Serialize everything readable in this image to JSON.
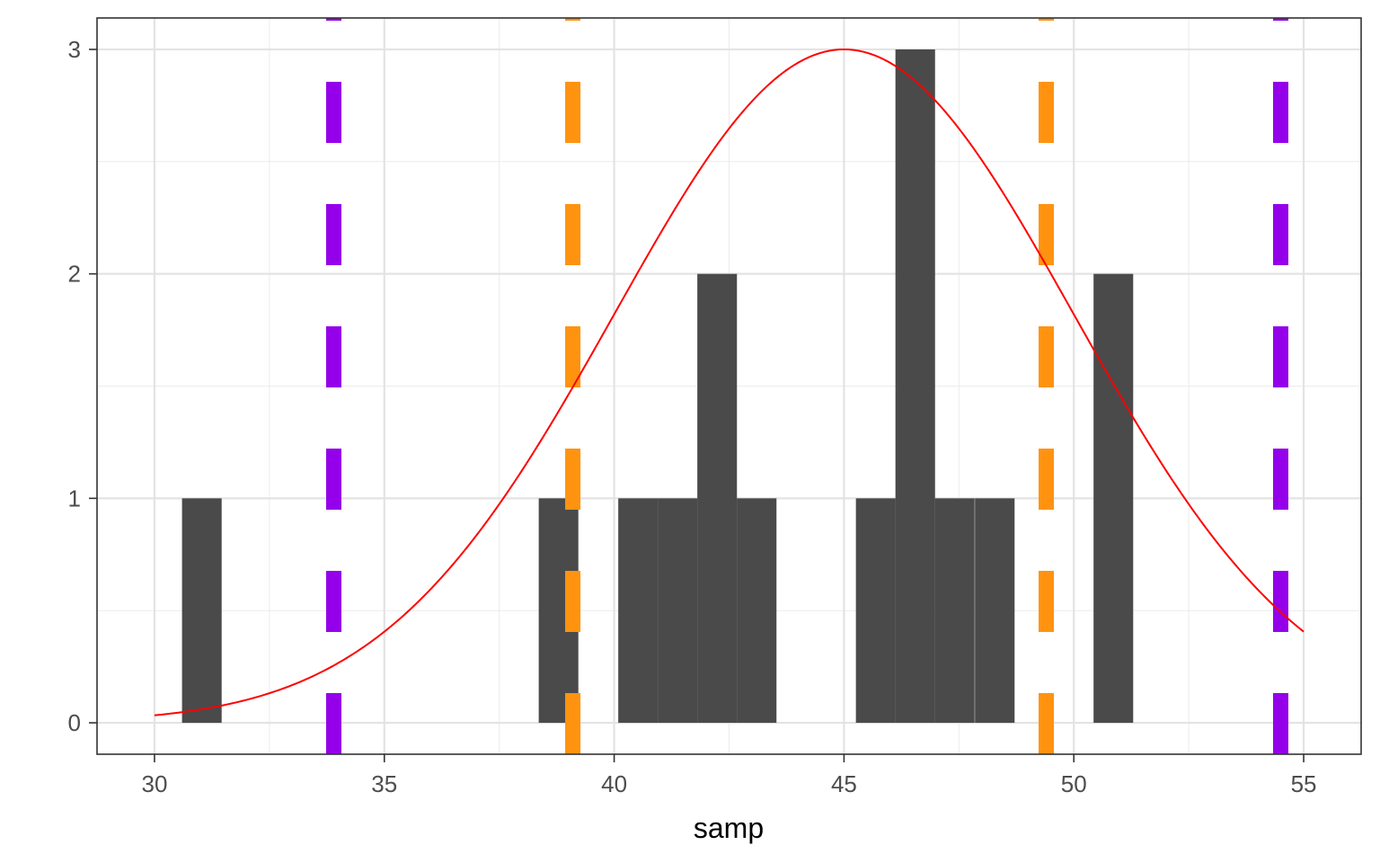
{
  "chart_data": {
    "type": "bar",
    "xlabel": "samp",
    "ylabel": "",
    "title": "",
    "xlim": [
      28.75,
      56.25
    ],
    "ylim": [
      -0.14,
      3.14
    ],
    "x_ticks": [
      30,
      35,
      40,
      45,
      50,
      55
    ],
    "x_tick_labels": [
      "30",
      "35",
      "40",
      "45",
      "50",
      "55"
    ],
    "y_ticks": [
      0,
      1,
      2,
      3
    ],
    "y_tick_labels": [
      "0",
      "1",
      "2",
      "3"
    ],
    "grid": true,
    "bar_color": "#4a4a4a",
    "bin_width": 0.8621,
    "histogram": [
      {
        "x": 31.03,
        "count": 1
      },
      {
        "x": 38.79,
        "count": 1
      },
      {
        "x": 40.52,
        "count": 1
      },
      {
        "x": 41.38,
        "count": 1
      },
      {
        "x": 42.24,
        "count": 2
      },
      {
        "x": 43.1,
        "count": 1
      },
      {
        "x": 45.69,
        "count": 1
      },
      {
        "x": 46.55,
        "count": 3
      },
      {
        "x": 47.41,
        "count": 1
      },
      {
        "x": 48.28,
        "count": 1
      },
      {
        "x": 50.86,
        "count": 2
      }
    ],
    "curve": {
      "mean": 45,
      "sd": 5,
      "peak": 3,
      "x_range": [
        30,
        55
      ],
      "color": "#ff0000"
    },
    "vlines": [
      {
        "x": 33.9,
        "color": "#9400ea",
        "style": "dashed"
      },
      {
        "x": 39.1,
        "color": "#ff9310",
        "style": "dashed"
      },
      {
        "x": 49.4,
        "color": "#ff9310",
        "style": "dashed"
      },
      {
        "x": 54.5,
        "color": "#9400ea",
        "style": "dashed"
      }
    ]
  }
}
